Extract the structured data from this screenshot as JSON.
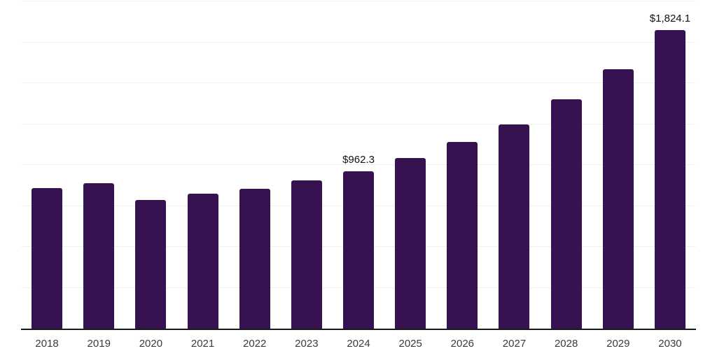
{
  "chart_data": {
    "type": "bar",
    "title": "",
    "xlabel": "",
    "ylabel": "",
    "categories": [
      "2018",
      "2019",
      "2020",
      "2021",
      "2022",
      "2023",
      "2024",
      "2025",
      "2026",
      "2027",
      "2028",
      "2029",
      "2030"
    ],
    "values": [
      859,
      888,
      785,
      825,
      855,
      905,
      962.3,
      1044,
      1141,
      1250,
      1400,
      1586,
      1824.1
    ],
    "data_labels": [
      "",
      "",
      "",
      "",
      "",
      "",
      "$962.3",
      "",
      "",
      "",
      "",
      "",
      "$1,824.1"
    ],
    "ylim": [
      0,
      2000
    ],
    "grid": true,
    "grid_interval": 250,
    "legend": false,
    "colors": {
      "bar": "#371250",
      "grid": "#f0f0f0",
      "axis": "#1a1a1a",
      "data_label": "#111111",
      "tick_label": "#3a3a3a",
      "background": "#ffffff"
    }
  }
}
